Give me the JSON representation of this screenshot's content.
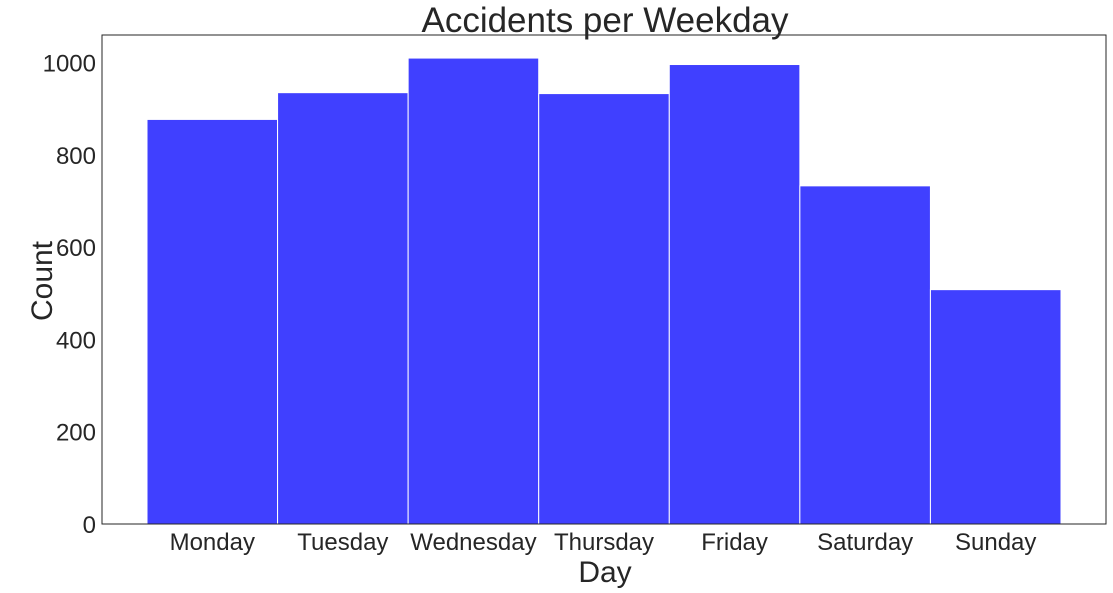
{
  "chart_data": {
    "type": "bar",
    "title": "Accidents per Weekday",
    "xlabel": "Day",
    "ylabel": "Count",
    "categories": [
      "Monday",
      "Tuesday",
      "Wednesday",
      "Thursday",
      "Friday",
      "Saturday",
      "Sunday"
    ],
    "values": [
      877,
      935,
      1010,
      933,
      996,
      733,
      508
    ],
    "ylim": [
      0,
      1060
    ],
    "yticks": [
      0,
      200,
      400,
      600,
      800,
      1000
    ],
    "grid": false,
    "bar_color": "#4040ff",
    "bar_edge_color": "#ffffff"
  }
}
